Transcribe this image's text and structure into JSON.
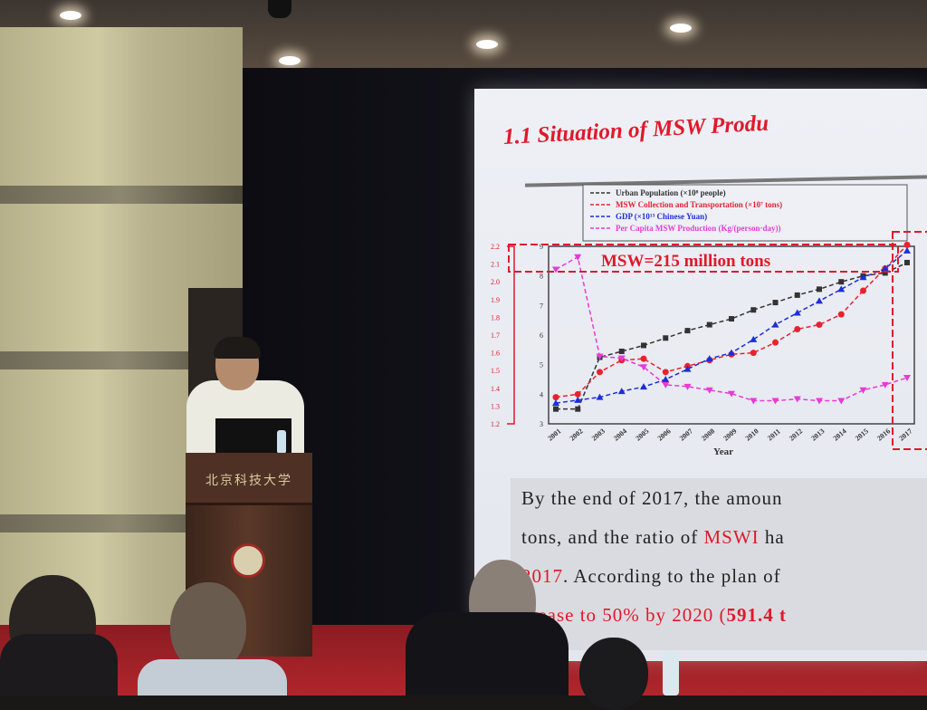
{
  "slide": {
    "title": "1.1 Situation of MSW Produ",
    "callout": "MSW=215 million tons",
    "text_lines": [
      [
        {
          "t": "By the end of 2017, the amoun",
          "red": false
        }
      ],
      [
        {
          "t": "tons, and the ratio of ",
          "red": false
        },
        {
          "t": "MSWI",
          "red": true
        },
        {
          "t": " ha",
          "red": false
        }
      ],
      [
        {
          "t": "2017",
          "red": true
        },
        {
          "t": ". According to the plan of",
          "red": false
        }
      ],
      [
        {
          "t": "crease to 50% by 2020 (",
          "red": true
        },
        {
          "t": "591.4 t",
          "red": true,
          "bold": true
        }
      ]
    ]
  },
  "podium": {
    "logo_text": "北京科技大学"
  },
  "colors": {
    "slide_red": "#e0192a",
    "curtain": "#121119",
    "stage": "#a8242a"
  },
  "chart_data": {
    "type": "line",
    "x": [
      2001,
      2002,
      2003,
      2004,
      2005,
      2006,
      2007,
      2008,
      2009,
      2010,
      2011,
      2012,
      2013,
      2014,
      2015,
      2016,
      2017
    ],
    "xlabel": "Year",
    "ylim": [
      3,
      9
    ],
    "yticks": [
      3,
      4,
      5,
      6,
      7,
      8,
      9
    ],
    "y2lim": [
      1.2,
      2.2
    ],
    "y2ticks": [
      "1.2",
      "1.3",
      "1.4",
      "1.5",
      "1.6",
      "1.7",
      "1.8",
      "1.9",
      "2.0",
      "2.1",
      "2.2"
    ],
    "legend_placement": "top",
    "series": [
      {
        "name": "Urban Population (×10⁸ people)",
        "color": "#333333",
        "marker": "square",
        "axis": "y",
        "values": [
          3.5,
          3.5,
          5.25,
          5.45,
          5.65,
          5.9,
          6.15,
          6.35,
          6.55,
          6.85,
          7.1,
          7.35,
          7.55,
          7.8,
          8.0,
          8.1,
          8.45
        ]
      },
      {
        "name": "MSW Collection and Transportation (×10⁷ tons)",
        "color": "#e8222e",
        "marker": "circle",
        "axis": "y",
        "values": [
          3.9,
          4.0,
          4.75,
          5.15,
          5.2,
          4.75,
          4.95,
          5.15,
          5.35,
          5.4,
          5.75,
          6.2,
          6.35,
          6.7,
          7.5,
          8.25,
          9.05
        ]
      },
      {
        "name": "GDP (×10¹³ Chinese Yuan)",
        "color": "#1c2fd6",
        "marker": "triangle",
        "axis": "y",
        "values": [
          3.7,
          3.8,
          3.9,
          4.1,
          4.25,
          4.5,
          4.85,
          5.2,
          5.4,
          5.85,
          6.35,
          6.75,
          7.15,
          7.55,
          7.95,
          8.25,
          8.85
        ]
      },
      {
        "name": "Per Capita MSW Production (Kg/(person·day))",
        "color": "#e83ad8",
        "marker": "triangle-down",
        "axis": "y2",
        "values": [
          2.07,
          2.14,
          1.58,
          1.57,
          1.52,
          1.42,
          1.41,
          1.39,
          1.37,
          1.33,
          1.33,
          1.34,
          1.33,
          1.33,
          1.39,
          1.42,
          1.46
        ]
      }
    ]
  }
}
